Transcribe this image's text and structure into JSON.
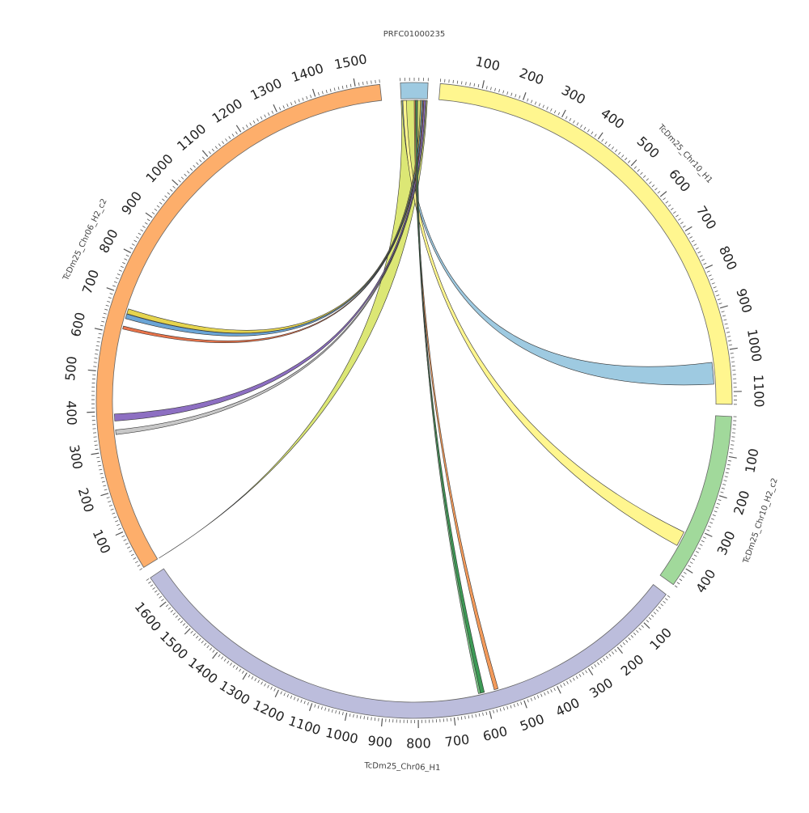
{
  "segments": [
    {
      "id": "prfc",
      "name": "PRFC01000235",
      "color": "#9ecae1",
      "length": 60,
      "tick_labels": []
    },
    {
      "id": "chr10h1",
      "name": "TcDm25_Chr10_H1",
      "color": "#fff68f",
      "length": 1130,
      "tick_labels": [
        100,
        200,
        300,
        400,
        500,
        600,
        700,
        800,
        900,
        1000,
        1100
      ]
    },
    {
      "id": "chr10h2",
      "name": "TcDm25_Chr10_H2_c2",
      "color": "#a1d99b",
      "length": 450,
      "tick_labels": [
        100,
        200,
        300,
        400
      ]
    },
    {
      "id": "chr06h1",
      "name": "TcDm25_Chr06_H1",
      "color": "#bcbddc",
      "length": 1680,
      "tick_labels": [
        100,
        200,
        300,
        400,
        500,
        600,
        700,
        800,
        900,
        1000,
        1100,
        1200,
        1300,
        1400,
        1500,
        1600
      ]
    },
    {
      "id": "chr06h2",
      "name": "TcDm25_Chr06_H2_c2",
      "color": "#fdae6b",
      "length": 1560,
      "tick_labels": [
        100,
        200,
        300,
        400,
        500,
        600,
        700,
        800,
        900,
        1000,
        1100,
        1200,
        1300,
        1400,
        1500
      ]
    }
  ],
  "links": [
    {
      "from": [
        "prfc",
        0,
        60
      ],
      "to": [
        "chr06h2",
        0,
        0
      ],
      "color": "#dce775"
    },
    {
      "from": [
        "prfc",
        2,
        8
      ],
      "to": [
        "chr10h1",
        1025,
        1080
      ],
      "color": "#9ecae1"
    },
    {
      "from": [
        "prfc",
        4,
        12
      ],
      "to": [
        "chr10h2",
        320,
        360
      ],
      "color": "#fff68f"
    },
    {
      "from": [
        "prfc",
        44,
        47
      ],
      "to": [
        "chr06h2",
        655,
        668
      ],
      "color": "#e5d44e"
    },
    {
      "from": [
        "prfc",
        47,
        50
      ],
      "to": [
        "chr06h2",
        642,
        654
      ],
      "color": "#6ba5d6"
    },
    {
      "from": [
        "prfc",
        50,
        52
      ],
      "to": [
        "chr06h2",
        614,
        622
      ],
      "color": "#e8734a"
    },
    {
      "from": [
        "prfc",
        52,
        56
      ],
      "to": [
        "chr06h2",
        375,
        393
      ],
      "color": "#8d6fc2"
    },
    {
      "from": [
        "prfc",
        56,
        58
      ],
      "to": [
        "chr06h2",
        340,
        352
      ],
      "color": "#c8c8c8"
    },
    {
      "from": [
        "prfc",
        30,
        33
      ],
      "to": [
        "chr06h1",
        560,
        572
      ],
      "color": "#f39a5a"
    },
    {
      "from": [
        "prfc",
        33,
        36
      ],
      "to": [
        "chr06h1",
        602,
        614
      ],
      "color": "#3c9a55"
    },
    {
      "from": [
        "prfc",
        36,
        38
      ],
      "to": [
        "chr06h1",
        614,
        620
      ],
      "color": "#7fc98a"
    }
  ]
}
